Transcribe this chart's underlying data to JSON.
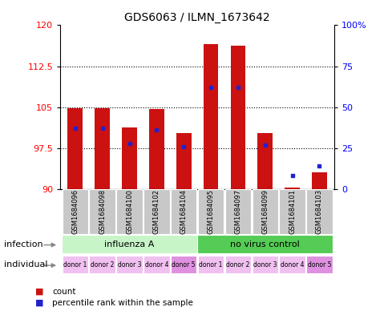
{
  "title": "GDS6063 / ILMN_1673642",
  "samples": [
    "GSM1684096",
    "GSM1684098",
    "GSM1684100",
    "GSM1684102",
    "GSM1684104",
    "GSM1684095",
    "GSM1684097",
    "GSM1684099",
    "GSM1684101",
    "GSM1684103"
  ],
  "count_values": [
    104.8,
    104.8,
    101.3,
    104.6,
    100.2,
    116.5,
    116.2,
    100.3,
    90.2,
    93.0
  ],
  "percentile_values": [
    37,
    37,
    28,
    36,
    26,
    62,
    62,
    27,
    8,
    14
  ],
  "ylim_left": [
    90,
    120
  ],
  "ylim_right": [
    0,
    100
  ],
  "yticks_left": [
    90,
    97.5,
    105,
    112.5,
    120
  ],
  "ytick_labels_left": [
    "90",
    "97.5",
    "105",
    "112.5",
    "120"
  ],
  "yticks_right": [
    0,
    25,
    50,
    75,
    100
  ],
  "ytick_labels_right": [
    "0",
    "25",
    "50",
    "75",
    "100%"
  ],
  "infection_groups": [
    {
      "label": "influenza A",
      "start": 0,
      "end": 5,
      "color": "#c8f5c8"
    },
    {
      "label": "no virus control",
      "start": 5,
      "end": 10,
      "color": "#55cc55"
    }
  ],
  "donor_labels": [
    "donor 1",
    "donor 2",
    "donor 3",
    "donor 4",
    "donor 5",
    "donor 1",
    "donor 2",
    "donor 3",
    "donor 4",
    "donor 5"
  ],
  "donor_colors_alt": [
    "#f0c0f0",
    "#f0c0f0",
    "#f0c0f0",
    "#f0c0f0",
    "#e090e0",
    "#f0c0f0",
    "#f0c0f0",
    "#f0c0f0",
    "#f0c0f0",
    "#e090e0"
  ],
  "bar_color": "#cc1111",
  "dot_color": "#2222cc",
  "bar_width": 0.55,
  "ybase": 90,
  "legend_count_label": "count",
  "legend_pct_label": "percentile rank within the sample",
  "infection_label": "infection",
  "individual_label": "individual",
  "sample_bg_color": "#c8c8c8",
  "gridline_ticks": [
    97.5,
    105,
    112.5
  ]
}
